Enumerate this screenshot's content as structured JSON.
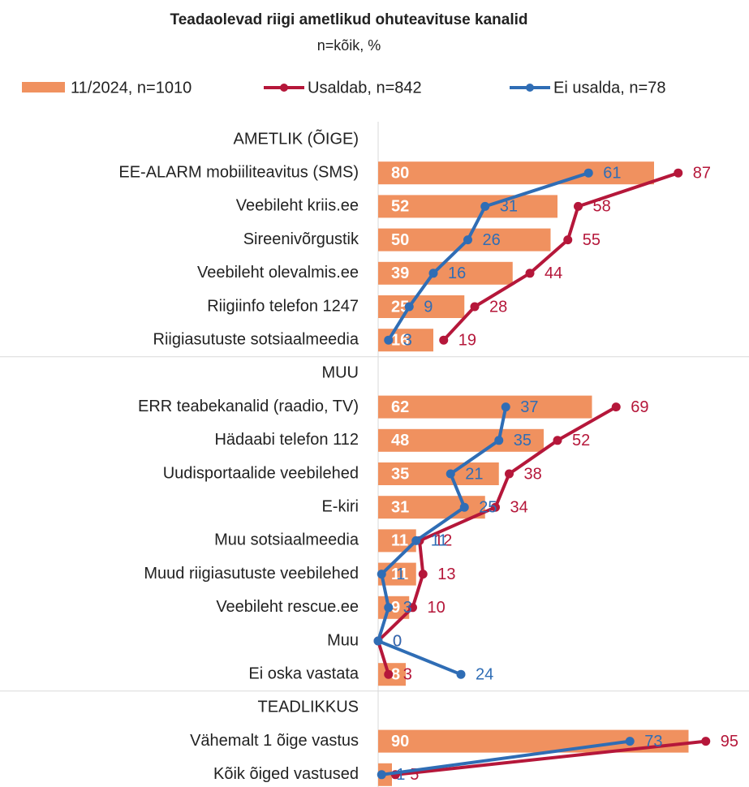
{
  "chart_data": {
    "type": "bar",
    "title": "Teadaolevad riigi ametlikud ohuteavituse kanalid",
    "subtitle": "n=kõik,  %",
    "categories": [
      "AMETLIK (ÕIGE)",
      "EE-ALARM mobiiliteavitus (SMS)",
      "Veebileht kriis.ee",
      "Sireenivõrgustik",
      "Veebileht olevalmis.ee",
      "Riigiinfo telefon 1247",
      "Riigiasutuste sotsiaalmeedia",
      "MUU",
      "ERR teabekanalid (raadio, TV)",
      "Hädaabi telefon 112",
      "Uudisportaalide veebilehed",
      "E-kiri",
      "Muu sotsiaalmeedia",
      "Muud riigiasutuste veebilehed",
      "Veebileht rescue.ee",
      "Muu",
      "Ei oska vastata",
      "TEADLIKKUS",
      "Vähemalt 1 õige vastus",
      "Kõik õiged vastused"
    ],
    "xlim": [
      0,
      100
    ],
    "series": [
      {
        "name": "11/2024, n=1010",
        "type": "bar",
        "color": "#f0915f",
        "values": [
          null,
          80,
          52,
          50,
          39,
          25,
          16,
          null,
          62,
          48,
          35,
          31,
          11,
          11,
          9,
          0,
          8,
          null,
          90,
          4
        ]
      },
      {
        "name": "Usaldab, n=842",
        "type": "line",
        "color": "#b5173a",
        "values": [
          null,
          87,
          58,
          55,
          44,
          28,
          19,
          null,
          69,
          52,
          38,
          34,
          12,
          13,
          10,
          0,
          3,
          null,
          95,
          5
        ]
      },
      {
        "name": "Ei usalda, n=78",
        "type": "line",
        "color": "#2f6db5",
        "values": [
          null,
          61,
          31,
          26,
          16,
          9,
          3,
          null,
          37,
          35,
          21,
          25,
          11,
          1,
          3,
          0,
          24,
          null,
          73,
          1
        ]
      }
    ]
  }
}
